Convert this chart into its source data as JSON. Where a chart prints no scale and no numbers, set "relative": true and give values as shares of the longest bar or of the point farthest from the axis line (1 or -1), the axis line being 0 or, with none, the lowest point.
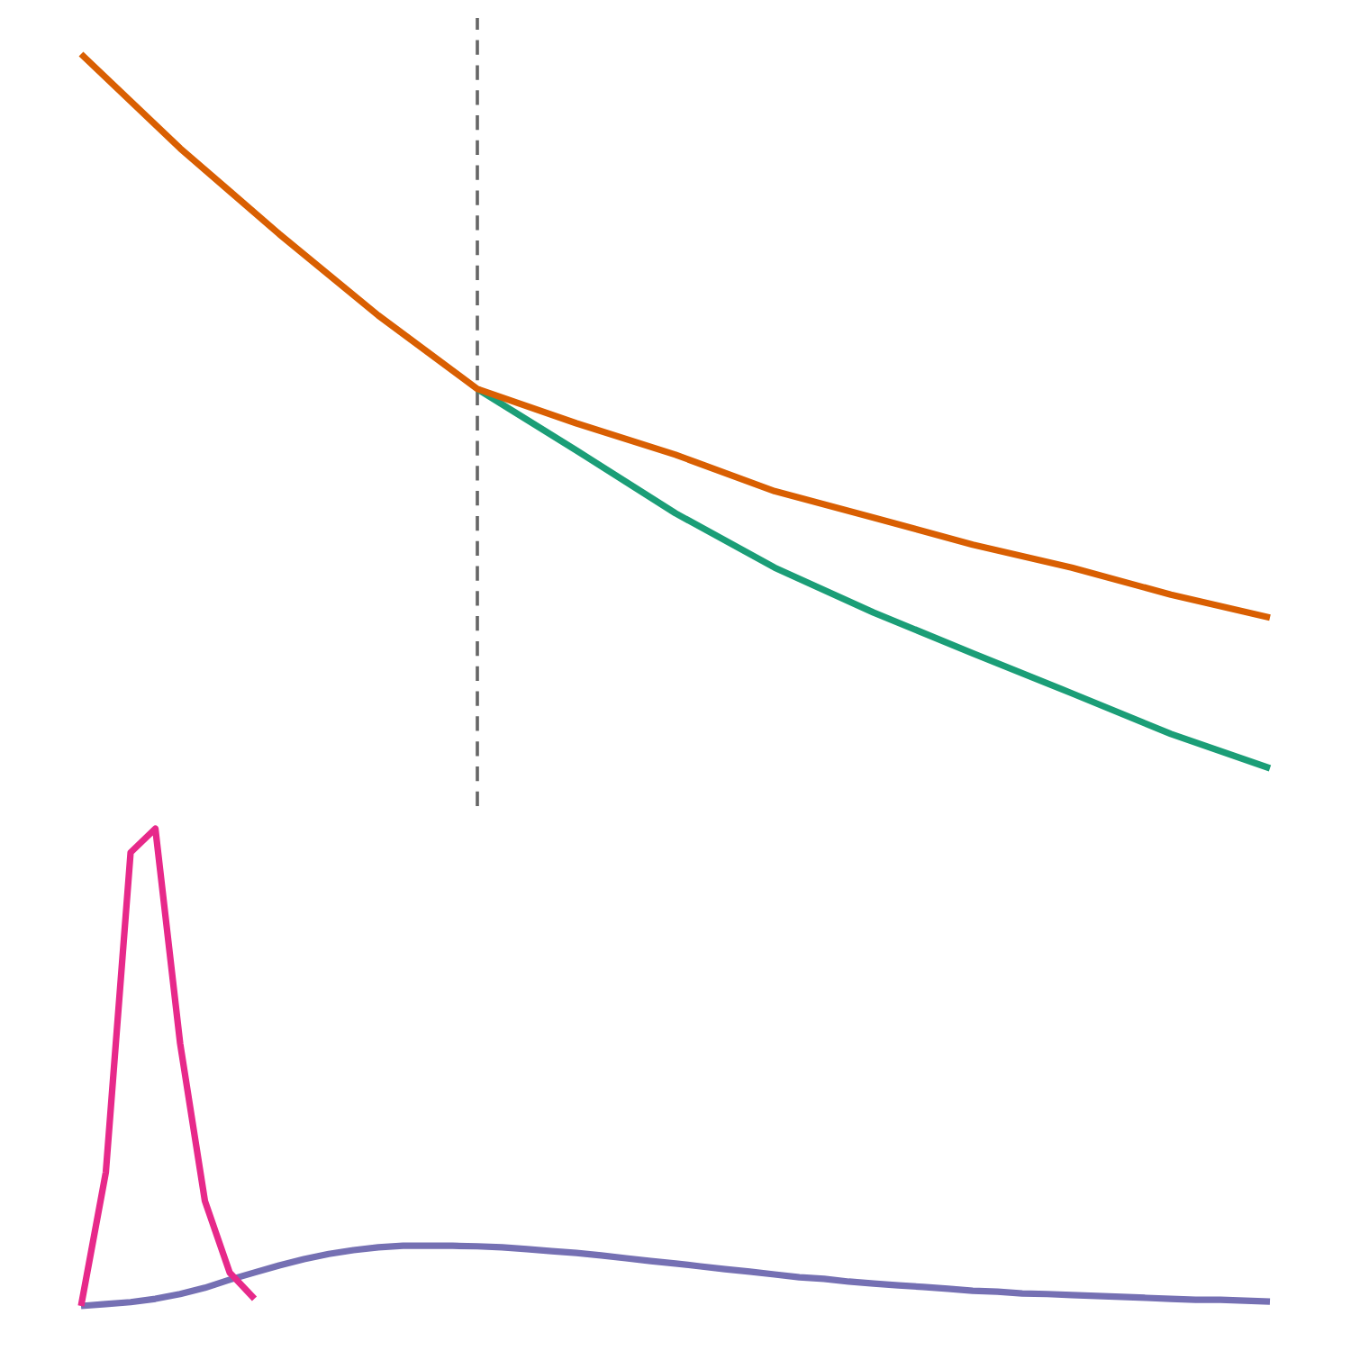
{
  "chart_data": [
    {
      "type": "line",
      "relative": true,
      "categories": [
        null,
        null,
        null,
        null,
        null,
        null,
        null,
        null,
        null,
        null,
        null,
        null,
        null
      ],
      "series": [
        {
          "color": "#1b9e77",
          "values": [
            null,
            null,
            null,
            null,
            0.531,
            0.445,
            0.357,
            0.281,
            0.218,
            0.161,
            0.105,
            0.048,
            0
          ]
        },
        {
          "color": "#d95f02",
          "values": [
            1.0,
            0.868,
            0.748,
            0.634,
            0.531,
            0.483,
            0.439,
            0.388,
            0.351,
            0.313,
            0.281,
            0.243,
            0.211
          ]
        }
      ]
    },
    {
      "type": "line",
      "relative": true,
      "categories": [
        null,
        null,
        null,
        null,
        null,
        null,
        null,
        null,
        null,
        null,
        null,
        null,
        null,
        null,
        null,
        null,
        null,
        null,
        null,
        null,
        null,
        null,
        null,
        null,
        null,
        null,
        null,
        null,
        null,
        null,
        null,
        null,
        null,
        null,
        null,
        null,
        null,
        null,
        null,
        null,
        null,
        null,
        null,
        null,
        null,
        null,
        null,
        null,
        null
      ],
      "series": [
        {
          "color": "#7570b3",
          "values": [
            0,
            0.004,
            0.008,
            0.015,
            0.025,
            0.038,
            0.055,
            0.07,
            0.085,
            0.098,
            0.109,
            0.117,
            0.123,
            0.126,
            0.126,
            0.126,
            0.125,
            0.123,
            0.119,
            0.115,
            0.111,
            0.106,
            0.1,
            0.094,
            0.089,
            0.083,
            0.077,
            0.072,
            0.066,
            0.06,
            0.057,
            0.051,
            0.047,
            0.043,
            0.04,
            0.036,
            0.032,
            0.03,
            0.026,
            0.025,
            0.023,
            0.021,
            0.019,
            0.017,
            0.015,
            0.013,
            0.013,
            0.011,
            0.009
          ]
        },
        {
          "color": "#e7298a",
          "values": [
            0,
            0.28,
            0.95,
            1.0,
            0.55,
            0.22,
            0.07,
            0.015,
            null,
            null,
            null,
            null,
            null,
            null,
            null,
            null,
            null,
            null,
            null,
            null,
            null,
            null,
            null,
            null,
            null,
            null,
            null,
            null,
            null,
            null,
            null,
            null,
            null,
            null,
            null,
            null,
            null,
            null,
            null,
            null,
            null,
            null,
            null,
            null,
            null,
            null,
            null,
            null,
            null
          ]
        }
      ]
    }
  ]
}
